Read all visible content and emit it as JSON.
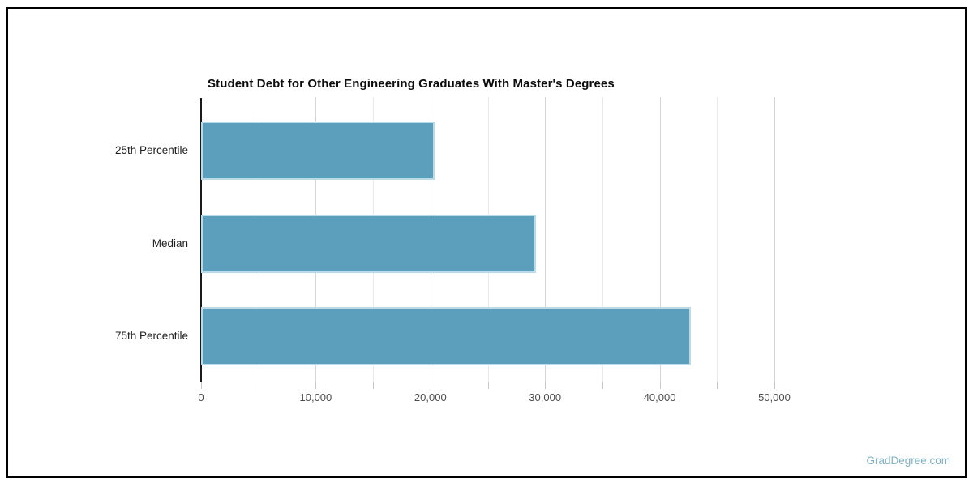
{
  "page": {
    "background": "#ffffff",
    "border_color": "#000000"
  },
  "watermark": {
    "text": "GradDegree.com",
    "color": "#7eb1c6"
  },
  "chart_data": {
    "type": "bar",
    "orientation": "horizontal",
    "title": "Student Debt for Other Engineering Graduates With Master's Degrees",
    "categories": [
      "25th Percentile",
      "Median",
      "75th Percentile"
    ],
    "values": [
      20400,
      29200,
      42700
    ],
    "xlabel": "",
    "ylabel": "",
    "xlim": [
      0,
      50000
    ],
    "x_major_ticks": [
      0,
      10000,
      20000,
      30000,
      40000,
      50000
    ],
    "x_tick_labels": [
      "0",
      "10,000",
      "20,000",
      "30,000",
      "40,000",
      "50,000"
    ],
    "x_minor_step": 5000,
    "grid": true,
    "legend": "none",
    "bar_color": "#5b9fbc",
    "bar_border_color": "#bcdae6",
    "axis_color": "#1a1a1a",
    "major_grid_color": "#d4d4d4",
    "minor_grid_color": "#e9e9e9",
    "tick_mark_color": "#c9c9c9",
    "tick_label_color": "#4d4d4d",
    "category_label_color": "#1f1f1f"
  }
}
